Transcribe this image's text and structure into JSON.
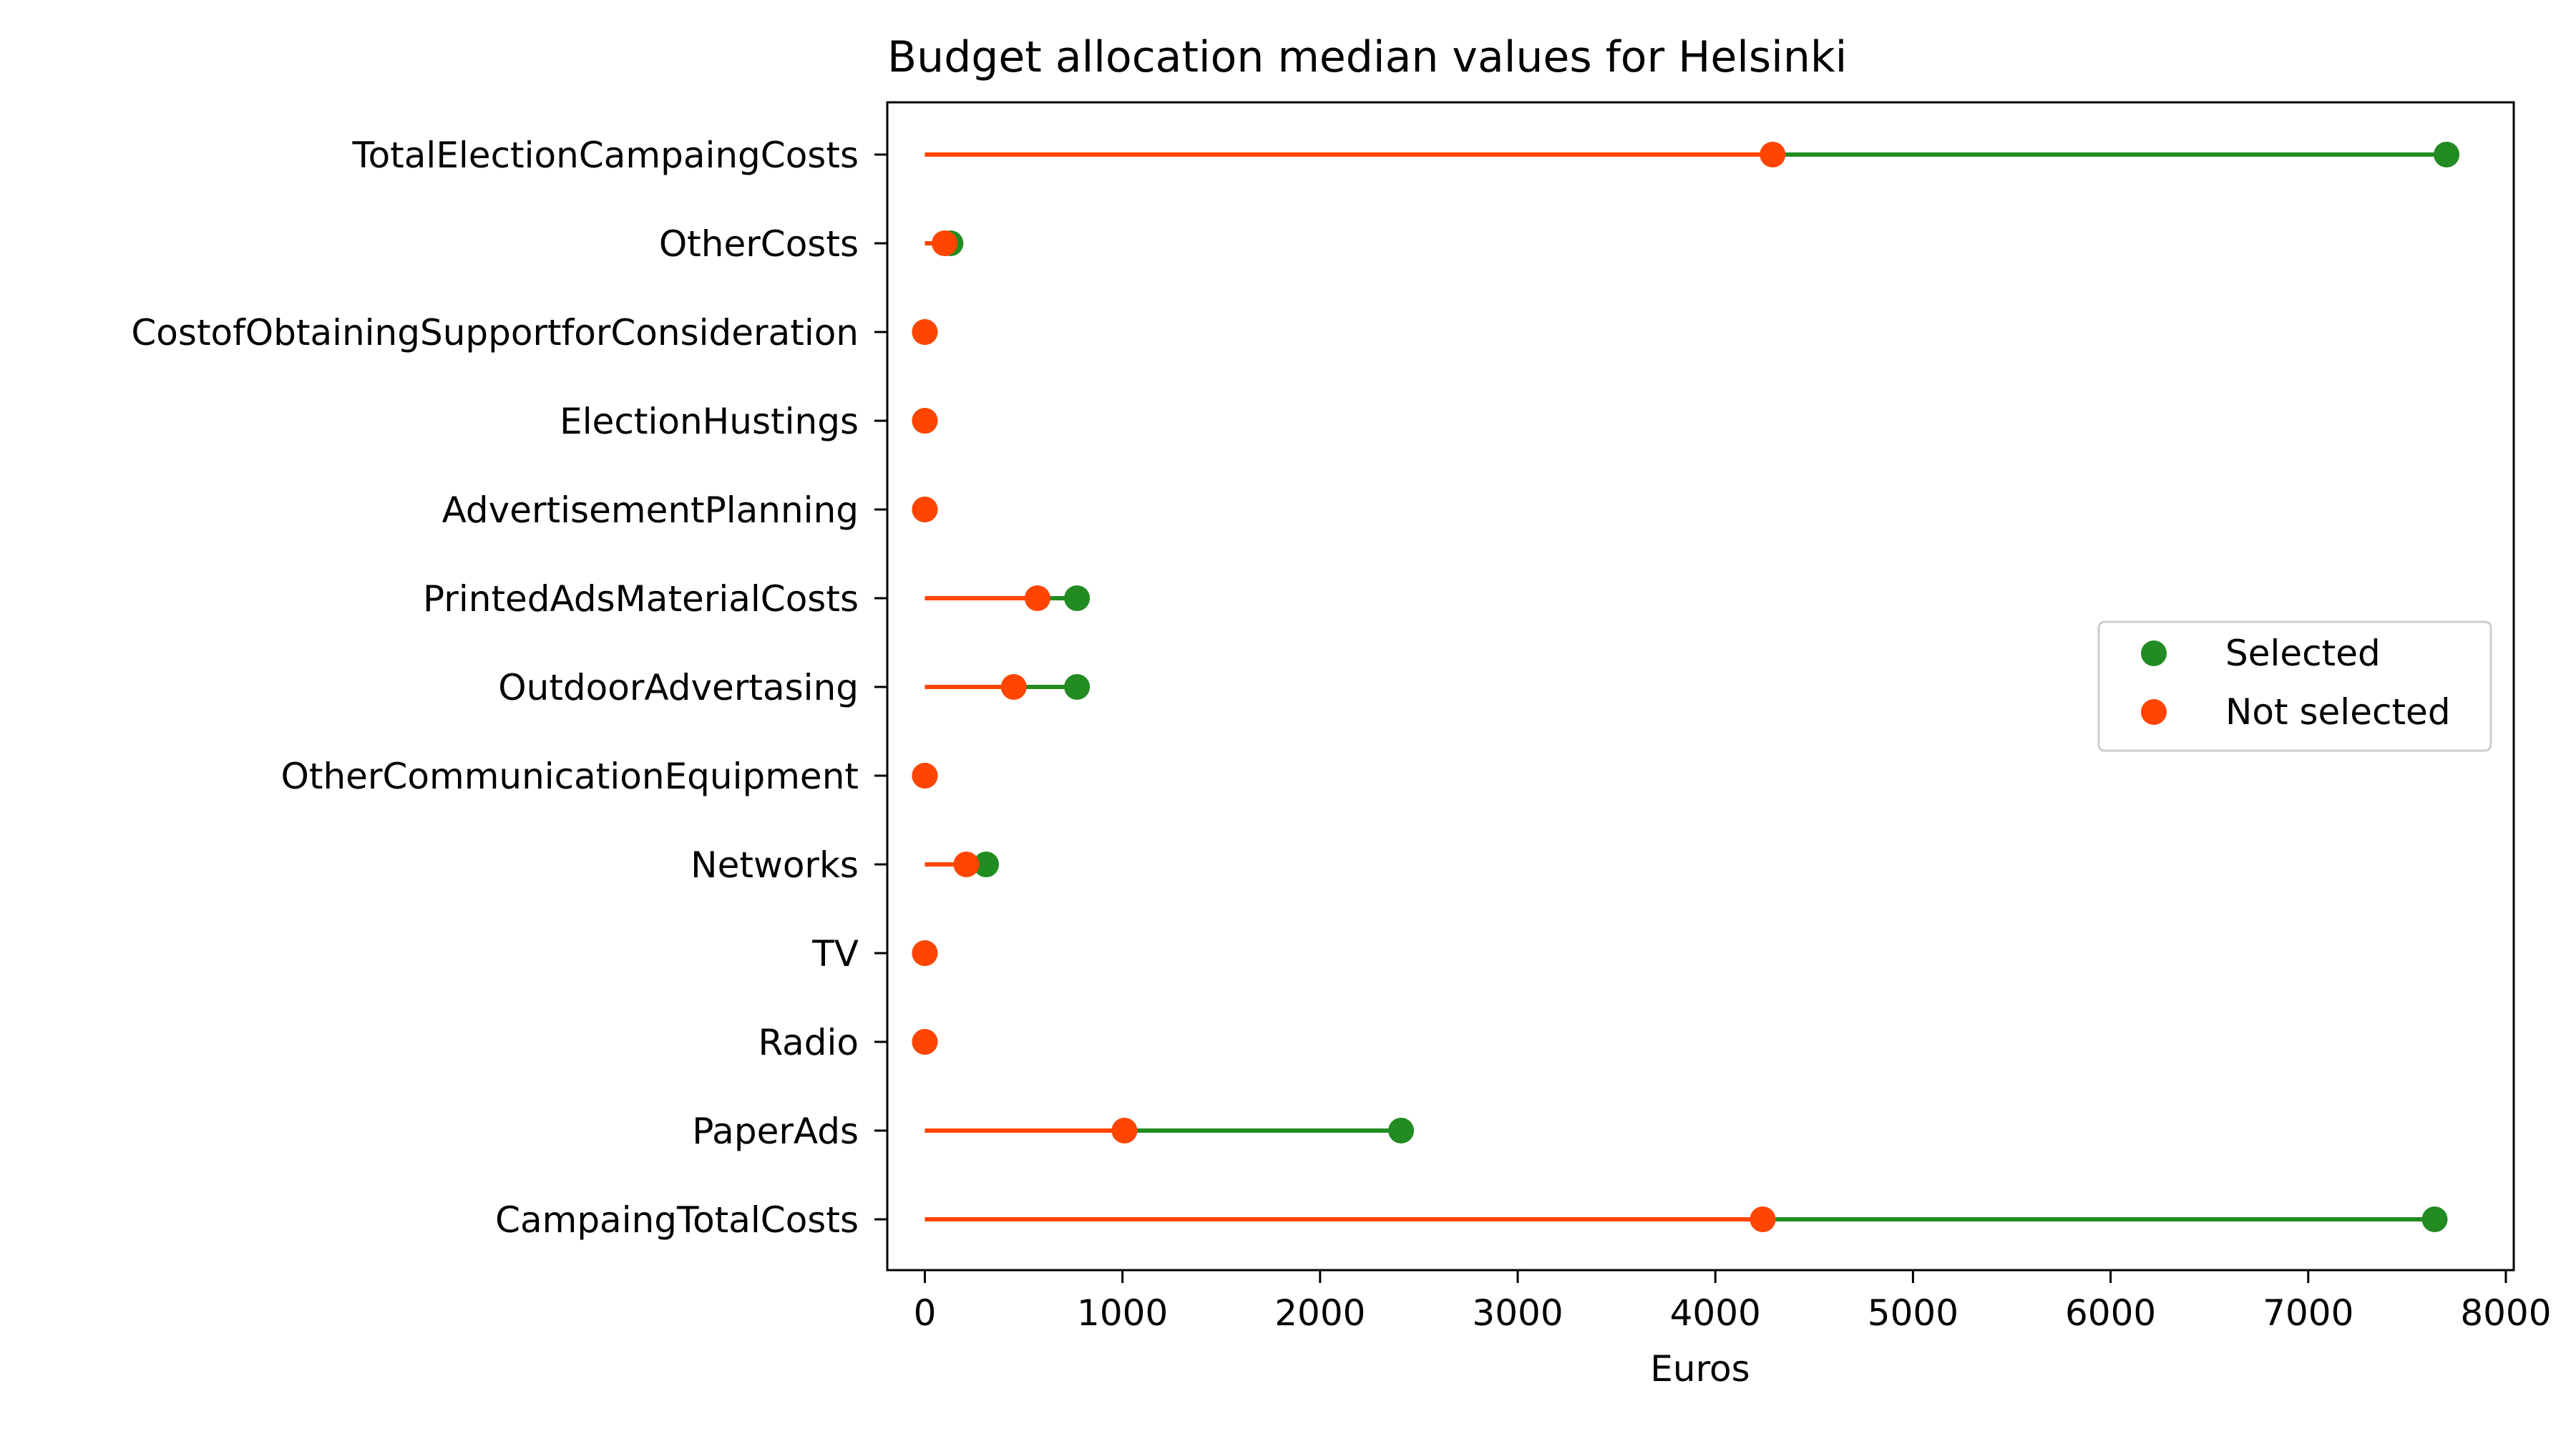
{
  "chart_data": {
    "type": "dumbbell",
    "title": "Budget allocation median values for Helsinki",
    "xlabel": "Euros",
    "ylabel": "",
    "xlim": [
      -190,
      8040
    ],
    "xticks": [
      0,
      1000,
      2000,
      3000,
      4000,
      5000,
      6000,
      7000,
      8000
    ],
    "grid": false,
    "legend_position": "center-right",
    "categories": [
      "TotalElectionCampaingCosts",
      "OtherCosts",
      "CostofObtainingSupportforConsideration",
      "ElectionHustings",
      "AdvertisementPlanning",
      "PrintedAdsMaterialCosts",
      "OutdoorAdvertasing",
      "OtherCommunicationEquipment",
      "Networks",
      "TV",
      "Radio",
      "PaperAds",
      "CampaingTotalCosts"
    ],
    "series": [
      {
        "name": "Selected",
        "color": "#228b22",
        "values": [
          7700,
          130,
          0,
          0,
          0,
          770,
          770,
          0,
          310,
          0,
          0,
          2410,
          7640
        ]
      },
      {
        "name": "Not selected",
        "color": "#ff4500",
        "values": [
          4290,
          100,
          0,
          0,
          0,
          570,
          450,
          0,
          210,
          0,
          0,
          1010,
          4240
        ]
      }
    ]
  }
}
